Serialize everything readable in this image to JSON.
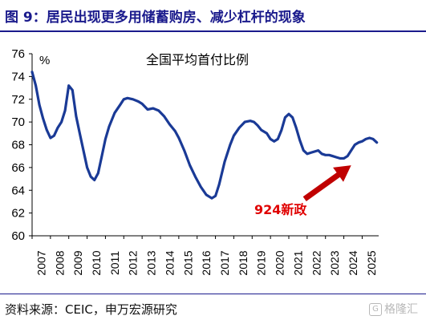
{
  "header": {
    "title": "图 9：居民出现更多用储蓄购房、减少杠杆的现象"
  },
  "footer": {
    "source": "资料来源：CEIC，申万宏源研究",
    "watermark_icon": "G",
    "watermark": "格隆汇"
  },
  "colors": {
    "title": "#1a1a8c",
    "line": "#1a3a96",
    "arrow": "#c00000",
    "annotation": "#e00000"
  },
  "chart_data": {
    "type": "line",
    "title": "全国平均首付比例",
    "ylabel": "%",
    "ylim": [
      60,
      76
    ],
    "yticks": [
      60,
      62,
      64,
      66,
      68,
      70,
      72,
      74,
      76
    ],
    "xlim": [
      2007,
      2025.9
    ],
    "xticks": [
      "2007",
      "2008",
      "2009",
      "2010",
      "2011",
      "2012",
      "2013",
      "2014",
      "2015",
      "2016",
      "2017",
      "2018",
      "2019",
      "2020",
      "2021",
      "2022",
      "2023",
      "2024",
      "2025"
    ],
    "grid": false,
    "annotation": {
      "text": "924新政",
      "target": [
        2024.4,
        66.9
      ]
    },
    "series": [
      {
        "x": [
          2007.0,
          2007.2,
          2007.4,
          2007.6,
          2007.8,
          2008.0,
          2008.2,
          2008.4,
          2008.6,
          2008.8,
          2009.0,
          2009.2,
          2009.4,
          2009.6,
          2009.8,
          2010.0,
          2010.2,
          2010.4,
          2010.6,
          2010.8,
          2011.0,
          2011.2,
          2011.5,
          2011.8,
          2012.0,
          2012.2,
          2012.5,
          2012.8,
          2013.0,
          2013.3,
          2013.6,
          2013.9,
          2014.2,
          2014.5,
          2014.8,
          2015.0,
          2015.3,
          2015.6,
          2015.9,
          2016.2,
          2016.5,
          2016.8,
          2017.0,
          2017.2,
          2017.5,
          2017.8,
          2018.0,
          2018.3,
          2018.6,
          2018.9,
          2019.1,
          2019.3,
          2019.5,
          2019.8,
          2020.0,
          2020.2,
          2020.4,
          2020.6,
          2020.8,
          2021.0,
          2021.2,
          2021.4,
          2021.6,
          2021.8,
          2022.0,
          2022.2,
          2022.4,
          2022.6,
          2022.8,
          2023.0,
          2023.2,
          2023.4,
          2023.6,
          2023.8,
          2024.0,
          2024.2,
          2024.4,
          2024.6,
          2024.8,
          2025.0,
          2025.2,
          2025.4,
          2025.6,
          2025.8
        ],
        "y": [
          74.4,
          73.2,
          71.5,
          70.3,
          69.3,
          68.6,
          68.8,
          69.5,
          70.0,
          71.0,
          73.2,
          72.8,
          70.5,
          69.0,
          67.5,
          66.0,
          65.2,
          64.9,
          65.5,
          67.0,
          68.5,
          69.6,
          70.8,
          71.5,
          72.0,
          72.1,
          72.0,
          71.8,
          71.6,
          71.1,
          71.2,
          71.0,
          70.5,
          69.8,
          69.2,
          68.6,
          67.5,
          66.2,
          65.2,
          64.3,
          63.6,
          63.3,
          63.5,
          64.5,
          66.5,
          68.0,
          68.8,
          69.5,
          70.0,
          70.1,
          70.0,
          69.7,
          69.3,
          69.0,
          68.5,
          68.3,
          68.5,
          69.3,
          70.4,
          70.7,
          70.4,
          69.5,
          68.4,
          67.5,
          67.2,
          67.3,
          67.4,
          67.5,
          67.2,
          67.1,
          67.1,
          67.0,
          66.9,
          66.8,
          66.8,
          67.0,
          67.5,
          68.0,
          68.2,
          68.3,
          68.5,
          68.6,
          68.5,
          68.2
        ]
      }
    ]
  }
}
